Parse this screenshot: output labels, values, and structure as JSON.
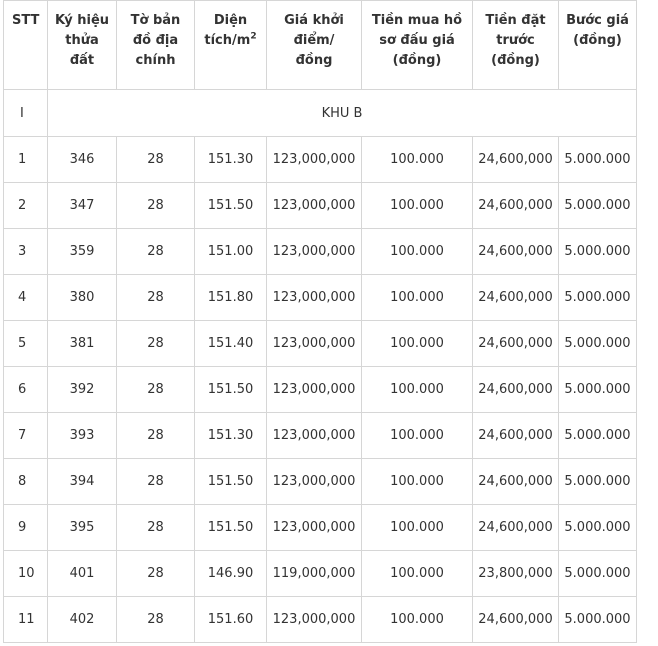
{
  "table": {
    "headers": {
      "stt": [
        "STT"
      ],
      "ky_hieu": [
        "Ký hiệu",
        "thửa",
        "đất"
      ],
      "to_ban_do": [
        "Tờ bản",
        "đồ địa",
        "chính"
      ],
      "dien_tich": [
        "Diện",
        "tích/m",
        "2"
      ],
      "gia_khoi_diem": [
        "Giá khởi",
        "điểm/",
        "đồng"
      ],
      "tien_mua_ho_so": [
        "Tiền mua hồ",
        "sơ đấu giá",
        "(đồng)"
      ],
      "tien_dat_truoc": [
        "Tiền đặt",
        "trước",
        "(đồng)"
      ],
      "buoc_gia": [
        "Bước giá",
        "(đồng)"
      ]
    },
    "section": {
      "stt": "I",
      "title": "KHU B"
    },
    "rows": [
      [
        "1",
        "346",
        "28",
        "151.30",
        "123,000,000",
        "100.000",
        "24,600,000",
        "5.000.000"
      ],
      [
        "2",
        "347",
        "28",
        "151.50",
        "123,000,000",
        "100.000",
        "24,600,000",
        "5.000.000"
      ],
      [
        "3",
        "359",
        "28",
        "151.00",
        "123,000,000",
        "100.000",
        "24,600,000",
        "5.000.000"
      ],
      [
        "4",
        "380",
        "28",
        "151.80",
        "123,000,000",
        "100.000",
        "24,600,000",
        "5.000.000"
      ],
      [
        "5",
        "381",
        "28",
        "151.40",
        "123,000,000",
        "100.000",
        "24,600,000",
        "5.000.000"
      ],
      [
        "6",
        "392",
        "28",
        "151.50",
        "123,000,000",
        "100.000",
        "24,600,000",
        "5.000.000"
      ],
      [
        "7",
        "393",
        "28",
        "151.30",
        "123,000,000",
        "100.000",
        "24,600,000",
        "5.000.000"
      ],
      [
        "8",
        "394",
        "28",
        "151.50",
        "123,000,000",
        "100.000",
        "24,600,000",
        "5.000.000"
      ],
      [
        "9",
        "395",
        "28",
        "151.50",
        "123,000,000",
        "100.000",
        "24,600,000",
        "5.000.000"
      ],
      [
        "10",
        "401",
        "28",
        "146.90",
        "119,000,000",
        "100.000",
        "23,800,000",
        "5.000.000"
      ],
      [
        "11",
        "402",
        "28",
        "151.60",
        "123,000,000",
        "100.000",
        "24,600,000",
        "5.000.000"
      ]
    ]
  },
  "colors": {
    "border": "#d6d6d6",
    "text": "#333333",
    "background": "#ffffff"
  }
}
